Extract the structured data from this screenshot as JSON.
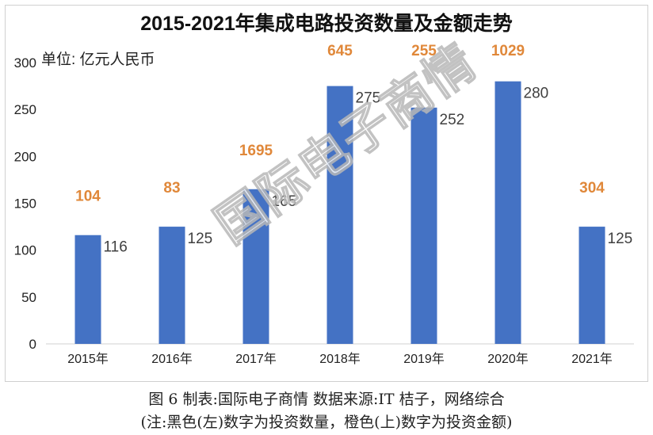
{
  "chart_data": {
    "type": "bar",
    "title": "2015-2021年集成电路投资数量及金额走势",
    "unit_label": "单位: 亿元人民币",
    "categories": [
      "2015年",
      "2016年",
      "2017年",
      "2018年",
      "2019年",
      "2020年",
      "2021年"
    ],
    "series": [
      {
        "values": [
          116,
          125,
          165,
          275,
          252,
          280,
          125
        ],
        "color": "#4472C4"
      }
    ],
    "top_labels": {
      "values": [
        104,
        83,
        1695,
        645,
        255,
        1029,
        304
      ],
      "color": "#E0883A"
    },
    "ylim": [
      0,
      300
    ],
    "yticks": [
      0,
      50,
      100,
      150,
      200,
      250,
      300
    ],
    "grid": false,
    "legend": "none"
  },
  "watermark": "国际电子商情",
  "caption": {
    "line1": "图 6 制表:国际电子商情 数据来源:IT 桔子，网络综合",
    "line2": "(注:黑色(左)数字为投资数量，橙色(上)数字为投资金额)"
  }
}
